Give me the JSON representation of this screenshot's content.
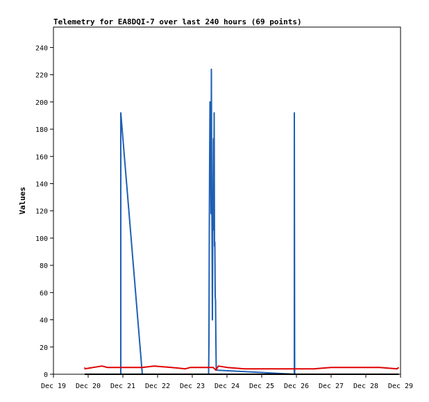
{
  "chart_data": {
    "type": "line",
    "title": "Telemetry for EA8DQI-7 over last 240 hours (69 points)",
    "xlabel": "",
    "ylabel": "Values",
    "x_ticks": [
      "Dec 19",
      "Dec 20",
      "Dec 21",
      "Dec 22",
      "Dec 23",
      "Dec 24",
      "Dec 25",
      "Dec 26",
      "Dec 27",
      "Dec 28",
      "Dec 29"
    ],
    "y_ticks": [
      0,
      20,
      40,
      60,
      80,
      100,
      120,
      140,
      160,
      180,
      200,
      220,
      240
    ],
    "xlim": [
      0,
      10
    ],
    "ylim": [
      0,
      255
    ],
    "grid": false,
    "legend": "none",
    "x_unit": "days after Dec 19 00:00",
    "series": [
      {
        "color": "#1f5fb4",
        "points": [
          [
            1.94,
            0
          ],
          [
            1.94,
            192
          ],
          [
            2.56,
            0
          ],
          [
            4.47,
            0
          ],
          [
            4.48,
            22
          ],
          [
            4.49,
            105
          ],
          [
            4.5,
            158
          ],
          [
            4.51,
            200
          ],
          [
            4.52,
            138
          ],
          [
            4.53,
            160
          ],
          [
            4.54,
            118
          ],
          [
            4.55,
            224
          ],
          [
            4.56,
            135
          ],
          [
            4.57,
            96
          ],
          [
            4.58,
            40
          ],
          [
            4.59,
            112
          ],
          [
            4.6,
            135
          ],
          [
            4.61,
            173
          ],
          [
            4.62,
            106
          ],
          [
            4.63,
            192
          ],
          [
            4.64,
            94
          ],
          [
            4.65,
            97
          ],
          [
            4.66,
            57
          ],
          [
            4.67,
            54
          ],
          [
            4.68,
            25
          ],
          [
            4.69,
            3
          ],
          [
            6.94,
            0
          ],
          [
            6.94,
            192
          ],
          [
            6.95,
            0
          ]
        ]
      },
      {
        "color": "#e00000",
        "points": [
          [
            0.9,
            5
          ],
          [
            0.91,
            4
          ],
          [
            1.15,
            5
          ],
          [
            1.4,
            6
          ],
          [
            1.55,
            5
          ],
          [
            2.0,
            5
          ],
          [
            2.56,
            5
          ],
          [
            2.9,
            6
          ],
          [
            3.4,
            5
          ],
          [
            3.8,
            4
          ],
          [
            3.95,
            5
          ],
          [
            4.6,
            5
          ],
          [
            4.68,
            3
          ],
          [
            4.75,
            6
          ],
          [
            5.0,
            5
          ],
          [
            5.5,
            4
          ],
          [
            6.0,
            4
          ],
          [
            6.94,
            4
          ],
          [
            7.5,
            4
          ],
          [
            8.0,
            5
          ],
          [
            8.9,
            5
          ],
          [
            9.4,
            5
          ],
          [
            9.9,
            4
          ],
          [
            9.95,
            5
          ]
        ]
      },
      {
        "color": "#000000",
        "points": [
          [
            0.9,
            0
          ],
          [
            9.95,
            0
          ]
        ]
      }
    ]
  }
}
